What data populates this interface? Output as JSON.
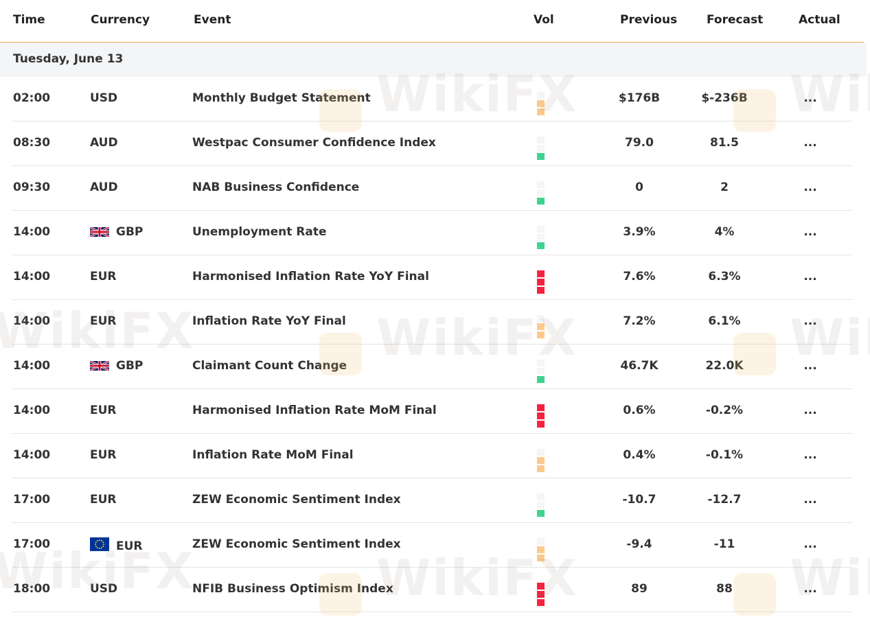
{
  "headers": {
    "time": "Time",
    "currency": "Currency",
    "event": "Event",
    "vol": "Vol",
    "previous": "Previous",
    "forecast": "Forecast",
    "actual": "Actual"
  },
  "date_label": "Tuesday, June 13",
  "watermark": "WikiFX",
  "volatility_colors": {
    "high": "#f5233f",
    "medium": "#fcc98d",
    "low": "#3fd391"
  },
  "events": [
    {
      "time": "02:00",
      "currency": "USD",
      "flag": "",
      "event": "Monthly Budget Statement",
      "vol": "medium",
      "previous": "$176B",
      "forecast": "$-236B",
      "actual": "..."
    },
    {
      "time": "08:30",
      "currency": "AUD",
      "flag": "",
      "event": "Westpac Consumer Confidence Index",
      "vol": "low",
      "previous": "79.0",
      "forecast": "81.5",
      "actual": "..."
    },
    {
      "time": "09:30",
      "currency": "AUD",
      "flag": "",
      "event": "NAB Business Confidence",
      "vol": "low",
      "previous": "0",
      "forecast": "2",
      "actual": "..."
    },
    {
      "time": "14:00",
      "currency": "GBP",
      "flag": "uk-flag-icon",
      "event": "Unemployment Rate",
      "vol": "low",
      "previous": "3.9%",
      "forecast": "4%",
      "actual": "..."
    },
    {
      "time": "14:00",
      "currency": "EUR",
      "flag": "",
      "event": "Harmonised Inflation Rate YoY Final",
      "vol": "high",
      "previous": "7.6%",
      "forecast": "6.3%",
      "actual": "..."
    },
    {
      "time": "14:00",
      "currency": "EUR",
      "flag": "",
      "event": "Inflation Rate YoY Final",
      "vol": "medium",
      "previous": "7.2%",
      "forecast": "6.1%",
      "actual": "..."
    },
    {
      "time": "14:00",
      "currency": "GBP",
      "flag": "uk-flag-icon",
      "event": "Claimant Count Change",
      "vol": "low",
      "previous": "46.7K",
      "forecast": "22.0K",
      "actual": "..."
    },
    {
      "time": "14:00",
      "currency": "EUR",
      "flag": "",
      "event": "Harmonised Inflation Rate MoM Final",
      "vol": "high",
      "previous": "0.6%",
      "forecast": "-0.2%",
      "actual": "..."
    },
    {
      "time": "14:00",
      "currency": "EUR",
      "flag": "",
      "event": "Inflation Rate MoM Final",
      "vol": "medium",
      "previous": "0.4%",
      "forecast": "-0.1%",
      "actual": "..."
    },
    {
      "time": "17:00",
      "currency": "EUR",
      "flag": "",
      "event": "ZEW Economic Sentiment Index",
      "vol": "low",
      "previous": "-10.7",
      "forecast": "-12.7",
      "actual": "..."
    },
    {
      "time": "17:00",
      "currency": "EUR",
      "flag": "eu-flag-icon",
      "event": "ZEW Economic Sentiment Index",
      "vol": "medium",
      "previous": "-9.4",
      "forecast": "-11",
      "actual": "..."
    },
    {
      "time": "18:00",
      "currency": "USD",
      "flag": "",
      "event": "NFIB Business Optimism Index",
      "vol": "high",
      "previous": "89",
      "forecast": "88",
      "actual": "..."
    }
  ]
}
